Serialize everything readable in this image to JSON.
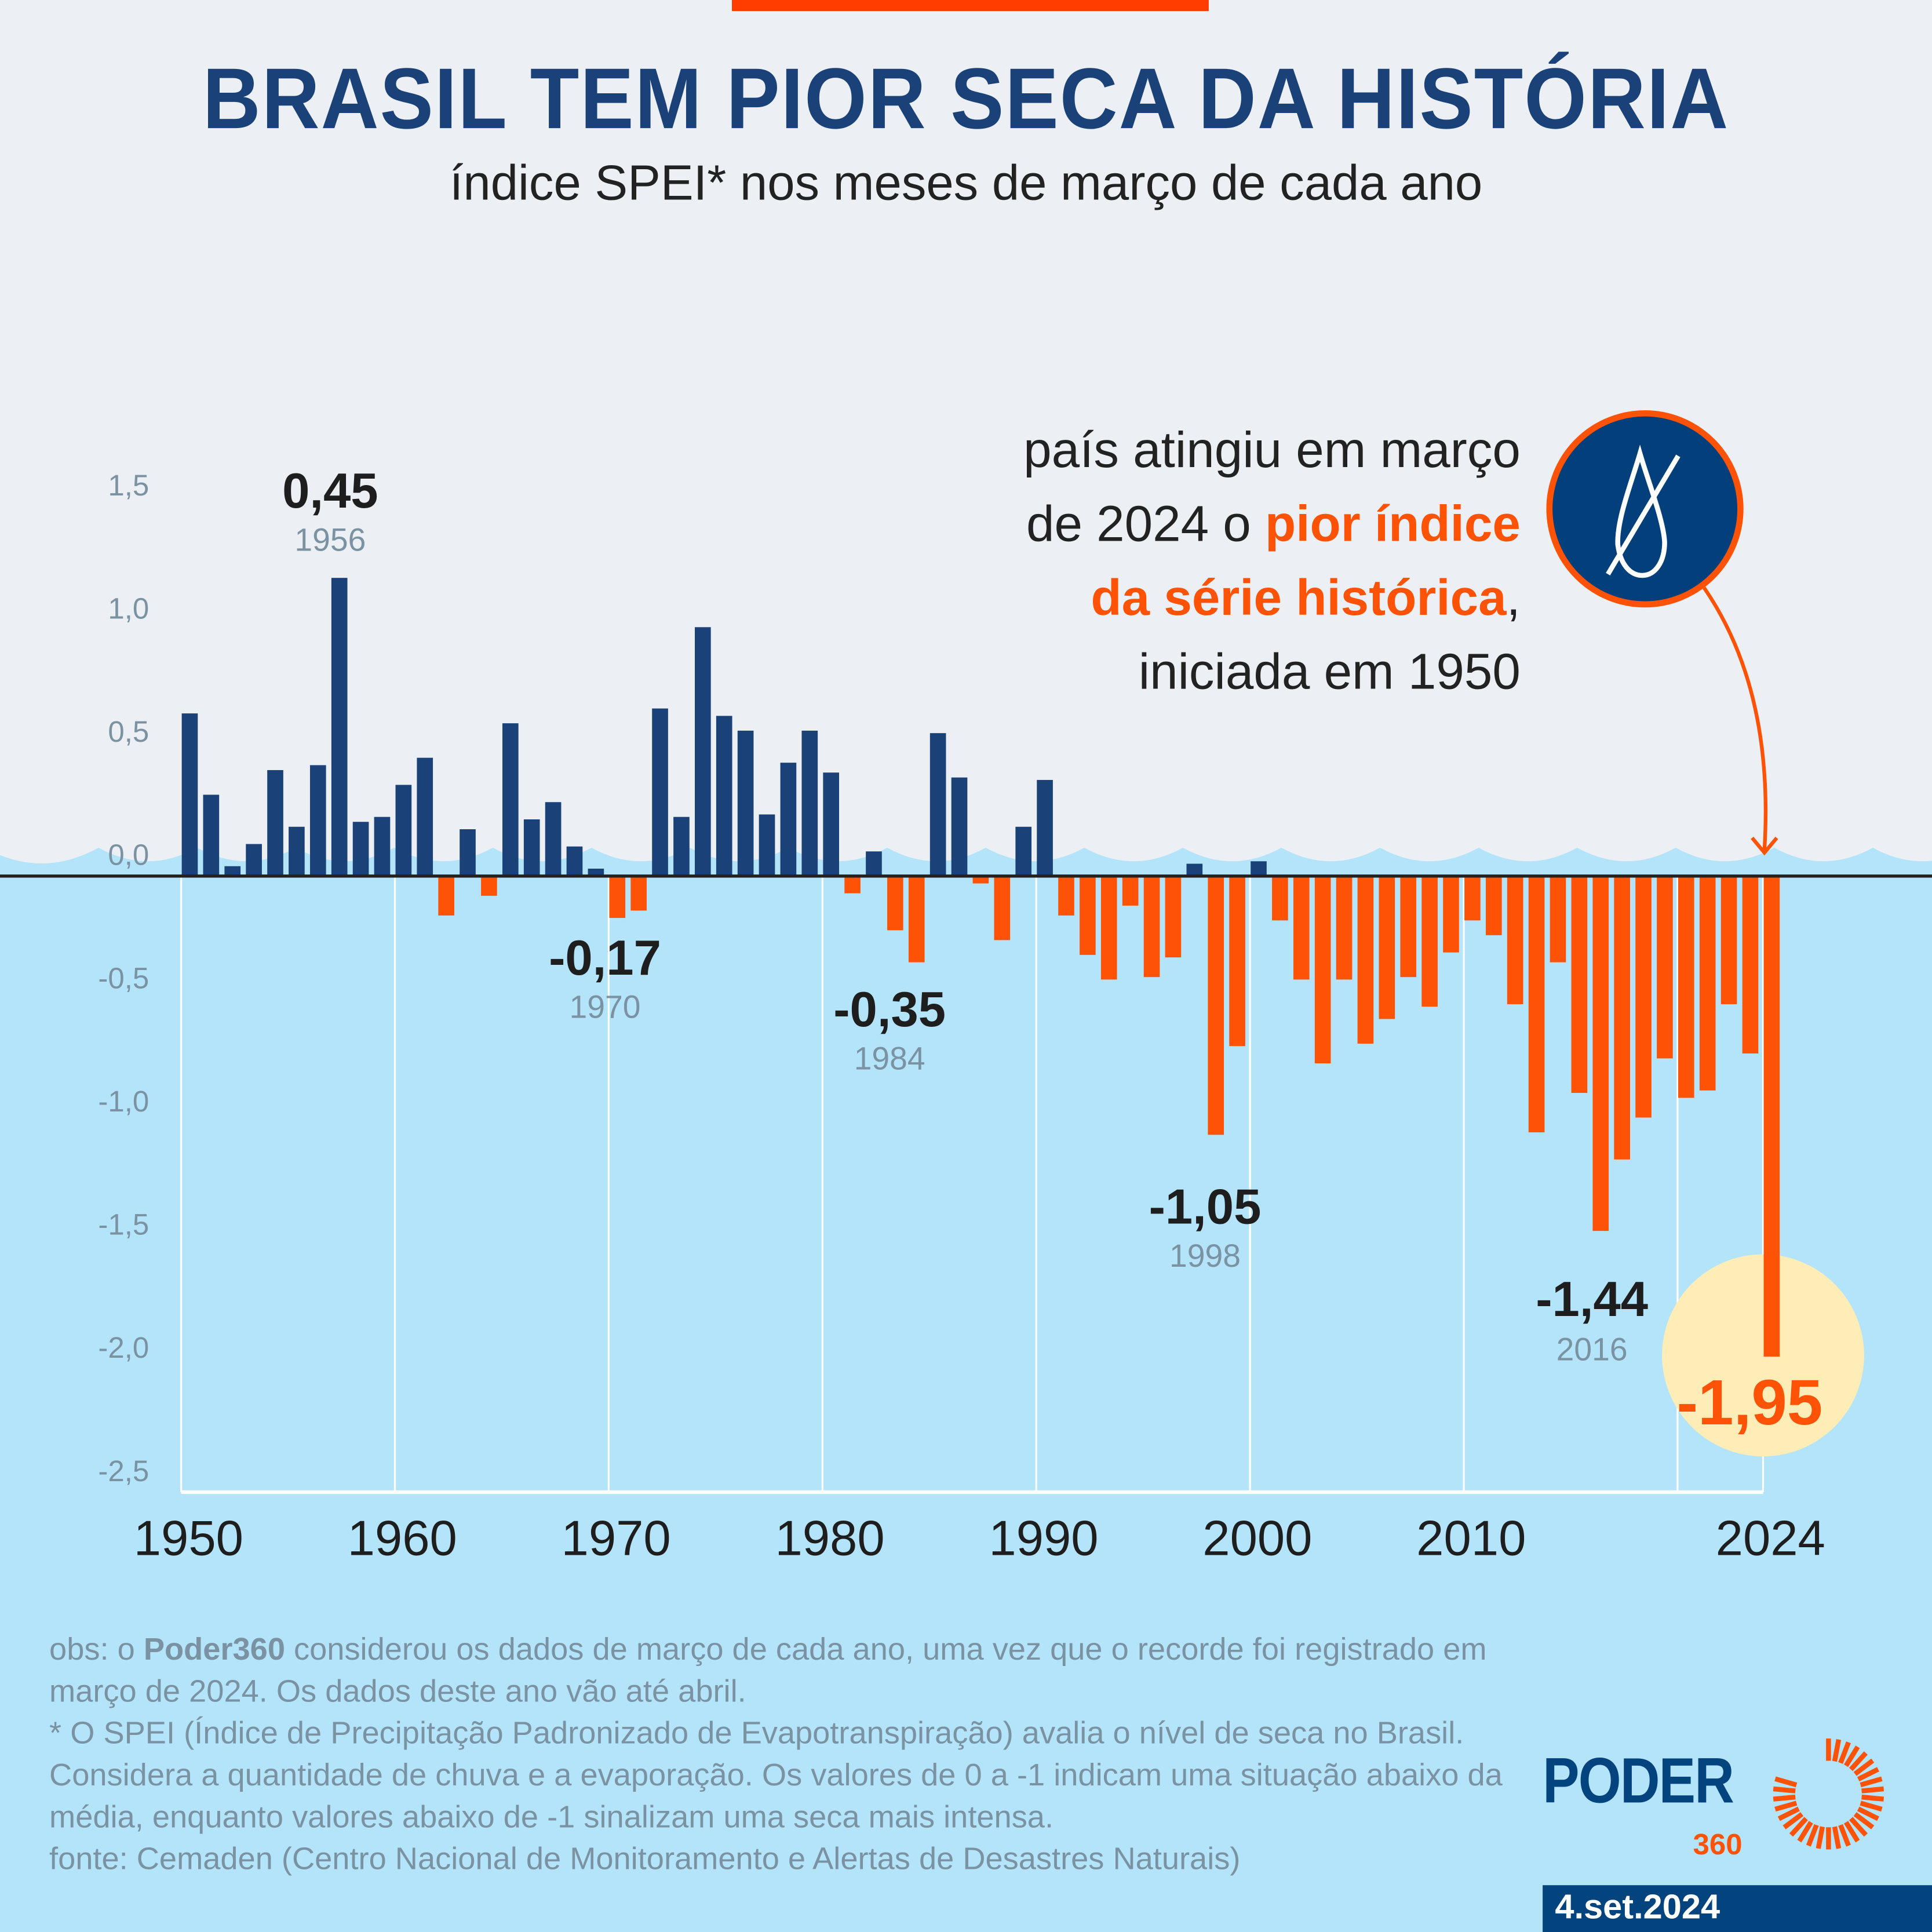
{
  "header": {
    "title": "BRASIL TEM PIOR SECA DA HISTÓRIA",
    "subtitle": "índice SPEI* nos meses de março de cada ano"
  },
  "annotation": {
    "line1": "país atingiu em março",
    "line2_plain": "de 2024 o ",
    "line2_highlight": "pior índice",
    "line3_highlight": "da série histórica",
    "line3_plain": ",",
    "line4": "iniciada em 1950",
    "icon": "no-water-drop-icon"
  },
  "footer": {
    "obs_prefix": "obs: o ",
    "obs_brand": "Poder360",
    "obs_text": " considerou os dados de março de cada ano, uma vez que o recorde foi registrado em março de 2024. Os dados deste ano vão até abril.",
    "spei_note": "* O SPEI (Índice de Precipitação Padronizado de Evapotranspiração) avalia o nível de seca no Brasil. Considera a quantidade de chuva e a evaporação. Os valores de 0 a -1 indicam uma situação abaixo da média, enquanto valores abaixo de -1 sinalizam uma seca mais intensa.",
    "source": "fonte: Cemaden (Centro Nacional de Monitoramento e Alertas de Desastres Naturais)"
  },
  "brand": {
    "logo_text": "PODER",
    "logo_sub": "360",
    "date": "4.set.2024"
  },
  "colors": {
    "positive": "#1a4279",
    "negative": "#fe5307",
    "title": "#1a4279",
    "water": "#b3e4fa",
    "background": "#eceff3",
    "highlight_circle": "#feedb7"
  },
  "chart_data": {
    "type": "bar",
    "title": "BRASIL TEM PIOR SECA DA HISTÓRIA",
    "subtitle": "índice SPEI* nos meses de março de cada ano",
    "xlabel": "",
    "ylabel": "",
    "ylim": [
      -2.5,
      1.5
    ],
    "grid": true,
    "y_ticks": [
      "1,5",
      "1,0",
      "0,5",
      "0,0",
      "-0,5",
      "-1,0",
      "-1,5",
      "-2,0",
      "-2,5"
    ],
    "y_tick_values": [
      1.5,
      1.0,
      0.5,
      0.0,
      -0.5,
      -1.0,
      -1.5,
      -2.0,
      -2.5
    ],
    "x_ticks": [
      1950,
      1960,
      1970,
      1980,
      1990,
      2000,
      2010,
      2024
    ],
    "x_tick_labels": [
      "1950",
      "1960",
      "1970",
      "1980",
      "1990",
      "2000",
      "2010",
      "2024"
    ],
    "x_gridlines": [
      1950,
      1960,
      1970,
      1980,
      1990,
      2000,
      2010,
      2020,
      2024
    ],
    "categories": [
      1950,
      1951,
      1952,
      1953,
      1954,
      1955,
      1956,
      1957,
      1958,
      1959,
      1960,
      1961,
      1962,
      1963,
      1964,
      1965,
      1966,
      1967,
      1968,
      1969,
      1970,
      1971,
      1972,
      1973,
      1974,
      1975,
      1976,
      1977,
      1978,
      1979,
      1980,
      1981,
      1982,
      1983,
      1984,
      1985,
      1986,
      1987,
      1988,
      1989,
      1990,
      1991,
      1992,
      1993,
      1994,
      1995,
      1996,
      1997,
      1998,
      1999,
      2000,
      2001,
      2002,
      2003,
      2004,
      2005,
      2006,
      2007,
      2008,
      2009,
      2010,
      2011,
      2012,
      2013,
      2014,
      2015,
      2016,
      2017,
      2018,
      2019,
      2020,
      2021,
      2022,
      2023,
      2024
    ],
    "values": [
      0.66,
      0.33,
      0.04,
      0.13,
      0.43,
      0.2,
      0.45,
      1.21,
      0.22,
      0.24,
      0.37,
      0.48,
      -0.16,
      0.19,
      -0.08,
      0.62,
      0.23,
      0.3,
      0.12,
      0.03,
      -0.17,
      -0.14,
      0.68,
      0.24,
      1.01,
      0.65,
      0.59,
      0.25,
      0.46,
      0.59,
      0.42,
      -0.07,
      0.1,
      -0.22,
      -0.35,
      0.58,
      0.4,
      -0.03,
      -0.26,
      0.2,
      0.39,
      -0.16,
      -0.32,
      -0.42,
      -0.12,
      -0.41,
      -0.33,
      0.05,
      -1.05,
      -0.69,
      0.06,
      -0.18,
      -0.42,
      -0.76,
      -0.42,
      -0.68,
      -0.58,
      -0.41,
      -0.53,
      -0.31,
      -0.18,
      -0.24,
      -0.52,
      -1.04,
      -0.35,
      -0.88,
      -1.44,
      -1.15,
      -0.98,
      -0.74,
      -0.9,
      -0.87,
      -0.52,
      -0.72,
      -1.95
    ],
    "annotations": [
      {
        "year": "1956",
        "label": "0,45"
      },
      {
        "year": "1970",
        "label": "-0,17"
      },
      {
        "year": "1984",
        "label": "-0,35"
      },
      {
        "year": "1998",
        "label": "-1,05"
      },
      {
        "year": "2016",
        "label": "-1,44"
      },
      {
        "year": "2024",
        "label": "-1,95",
        "highlight": true
      }
    ]
  }
}
